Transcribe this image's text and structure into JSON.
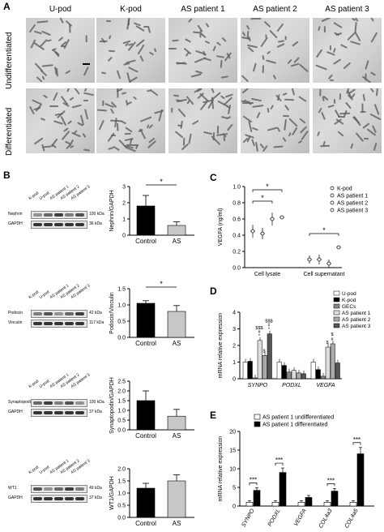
{
  "panelA": {
    "label": "A",
    "columns": [
      "U-pod",
      "K-pod",
      "AS patient 1",
      "AS patient 2",
      "AS patient 3"
    ],
    "rows": [
      "Undifferentiated",
      "Differentiated"
    ]
  },
  "panelB": {
    "label": "B",
    "blots": [
      {
        "lanes": [
          "K-pod",
          "U-pod",
          "AS patient 1",
          "AS patient 2",
          "AS patient 3"
        ],
        "bands": [
          {
            "name": "Nephrin",
            "kda": "100 kDa"
          },
          {
            "name": "GAPDH",
            "kda": "36 kDa"
          }
        ]
      },
      {
        "lanes": [
          "K-pod",
          "U-pod",
          "AS patient 1",
          "AS patient 2",
          "AS patient 3"
        ],
        "bands": [
          {
            "name": "Podocin",
            "kda": "42 kDa"
          },
          {
            "name": "Vinculin",
            "kda": "117 kDa"
          }
        ]
      },
      {
        "lanes": [
          "K-pod",
          "U-pod",
          "AS patient 1",
          "AS patient 2",
          "AS patient 3"
        ],
        "bands": [
          {
            "name": "Synaptopodin",
            "kda": "100 kDa"
          },
          {
            "name": "GAPDH",
            "kda": "37 kDa"
          }
        ]
      },
      {
        "lanes": [
          "K-pod",
          "U-pod",
          "AS patient 1",
          "AS patient 2",
          "AS patient 3"
        ],
        "bands": [
          {
            "name": "WT1",
            "kda": "49 kDa"
          },
          {
            "name": "GAPDH",
            "kda": "37 kDa"
          }
        ]
      }
    ]
  },
  "panelC": {
    "label": "C",
    "legend": [
      "K-pod",
      "AS patient 1",
      "AS patient 2",
      "AS patient 3"
    ]
  },
  "panelD": {
    "label": "D",
    "legend": [
      "U-pod",
      "K-pod",
      "GECs",
      "AS patient 1",
      "AS patient 2",
      "AS patient 3"
    ]
  },
  "panelE": {
    "label": "E",
    "legend": [
      "AS patient 1 undifferentiated",
      "AS patient 1 differentiated"
    ]
  },
  "chart_data": [
    {
      "type": "bar",
      "id": "B1",
      "categories": [
        "Control",
        "AS"
      ],
      "values": [
        1.8,
        0.6
      ],
      "errors": [
        0.65,
        0.22
      ],
      "ylabel": "Nephrin/GAPDH",
      "ylim": [
        0,
        3
      ],
      "yticks": [
        "0",
        "1",
        "2",
        "3"
      ],
      "annotations": [
        "*"
      ]
    },
    {
      "type": "bar",
      "id": "B2",
      "categories": [
        "Control",
        "AS"
      ],
      "values": [
        1.05,
        0.8
      ],
      "errors": [
        0.08,
        0.18
      ],
      "ylabel": "Podocin/Vinculin",
      "ylim": [
        0,
        1.5
      ],
      "yticks": [
        "0.0",
        "0.5",
        "1.0",
        "1.5"
      ],
      "annotations": [
        "*"
      ]
    },
    {
      "type": "bar",
      "id": "B3",
      "categories": [
        "Control",
        "AS"
      ],
      "values": [
        1.5,
        0.7
      ],
      "errors": [
        0.5,
        0.35
      ],
      "ylabel": "Synaptopodin/GAPDH",
      "ylim": [
        0,
        2.5
      ],
      "yticks": [
        "0.0",
        "0.5",
        "1.0",
        "1.5",
        "2.0",
        "2.5"
      ],
      "annotations": []
    },
    {
      "type": "bar",
      "id": "B4",
      "categories": [
        "Control",
        "AS"
      ],
      "values": [
        1.2,
        1.5
      ],
      "errors": [
        0.2,
        0.25
      ],
      "ylabel": "WT1/GAPDH",
      "ylim": [
        0,
        2
      ],
      "yticks": [
        "0.0",
        "0.5",
        "1.0",
        "1.5",
        "2.0"
      ],
      "annotations": []
    },
    {
      "type": "scatter",
      "id": "C",
      "categories": [
        "Cell lysate",
        "Cell supernatant"
      ],
      "ylabel": "VEGFA (ng/ml)",
      "ylim": [
        0,
        1
      ],
      "yticks": [
        "0.0",
        "0.2",
        "0.4",
        "0.6",
        "0.8",
        "1.0"
      ],
      "series": [
        {
          "name": "K-pod",
          "values": [
            0.45,
            0.1
          ]
        },
        {
          "name": "AS patient 1",
          "values": [
            0.42,
            0.1
          ]
        },
        {
          "name": "AS patient 2",
          "values": [
            0.6,
            0.05
          ]
        },
        {
          "name": "AS patient 3",
          "values": [
            0.62,
            0.25
          ]
        }
      ],
      "errors": [
        [
          0.08,
          0.07,
          0.08,
          0.02
        ],
        [
          0.05,
          0.06,
          0.05,
          0.02
        ]
      ],
      "annotations": [
        "*",
        "*",
        "*"
      ]
    },
    {
      "type": "bar",
      "id": "D",
      "categories": [
        "SYNPO",
        "PODXL",
        "VEGFA"
      ],
      "ylabel": "mRNA relative expression",
      "ylim": [
        0,
        4
      ],
      "yticks": [
        "0",
        "1",
        "2",
        "3",
        "4"
      ],
      "series": [
        {
          "name": "U-pod",
          "values": [
            1.0,
            1.0,
            1.0
          ]
        },
        {
          "name": "K-pod",
          "values": [
            1.05,
            0.8,
            0.55
          ]
        },
        {
          "name": "GECs",
          "values": [
            0.05,
            0.4,
            0.15
          ]
        },
        {
          "name": "AS patient 1",
          "values": [
            2.3,
            0.5,
            1.9
          ]
        },
        {
          "name": "AS patient 2",
          "values": [
            1.4,
            0.35,
            2.1
          ]
        },
        {
          "name": "AS patient 3",
          "values": [
            2.7,
            0.3,
            0.95
          ]
        }
      ],
      "annotations": [
        "$$$",
        "#",
        "*",
        "$$$",
        "#",
        "*",
        "$",
        "$",
        "$",
        "#"
      ]
    },
    {
      "type": "bar",
      "id": "E",
      "categories": [
        "SYNPO",
        "PODXL",
        "VEGFA",
        "COL4a3",
        "COL4a5"
      ],
      "ylabel": "mRNA relative expression",
      "ylim": [
        0,
        20
      ],
      "yticks": [
        "0",
        "5",
        "10",
        "15",
        "20"
      ],
      "series": [
        {
          "name": "AS patient 1 undifferentiated",
          "values": [
            1,
            1,
            1,
            1,
            1
          ]
        },
        {
          "name": "AS patient 1 differentiated",
          "values": [
            4.2,
            9,
            2.3,
            4,
            14
          ]
        }
      ],
      "annotations": [
        "***",
        "***",
        "***",
        "***"
      ]
    }
  ]
}
